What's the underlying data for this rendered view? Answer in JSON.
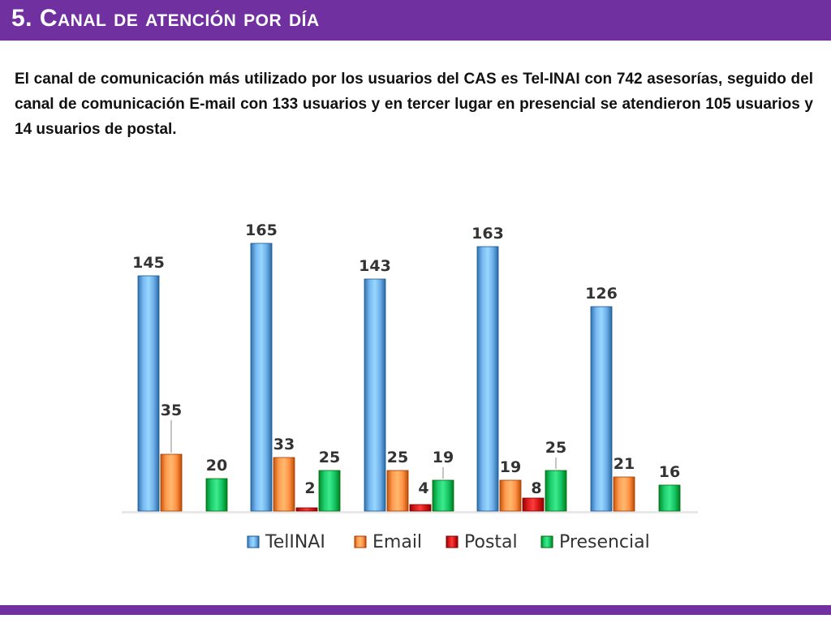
{
  "header": {
    "title": "5. Canal de atención por día"
  },
  "body": {
    "text": "El canal de comunicación más utilizado por los usuarios del CAS es Tel-INAI con 742 asesorías, seguido del canal de comunicación E-mail con 133 usuarios y en tercer lugar en presencial se atendieron 105 usuarios y 14 usuarios de postal."
  },
  "colors": {
    "accent": "#7030a0",
    "telinai": "#5b9bd5",
    "email": "#ed7d31",
    "postal": "#c00000",
    "presencial": "#00b050"
  },
  "chart_data": {
    "type": "bar",
    "categories": [
      "",
      "",
      "",
      "",
      ""
    ],
    "series": [
      {
        "name": "TelINAI",
        "color": "#5b9bd5",
        "values": [
          145,
          165,
          143,
          163,
          126
        ]
      },
      {
        "name": "Email",
        "color": "#ed7d31",
        "values": [
          35,
          33,
          25,
          19,
          21
        ]
      },
      {
        "name": "Postal",
        "color": "#c00000",
        "values": [
          0,
          2,
          4,
          8,
          0
        ]
      },
      {
        "name": "Presencial",
        "color": "#00b050",
        "values": [
          20,
          25,
          19,
          25,
          16
        ]
      }
    ],
    "value_labels": [
      [
        "145",
        "35",
        "",
        "20"
      ],
      [
        "165",
        "33",
        "2",
        "25"
      ],
      [
        "143",
        "25",
        "4",
        "19"
      ],
      [
        "163",
        "19",
        "8",
        "25"
      ],
      [
        "126",
        "21",
        "",
        "16"
      ]
    ],
    "ylim": [
      0,
      170
    ],
    "grid": false,
    "legend": "bottom"
  }
}
